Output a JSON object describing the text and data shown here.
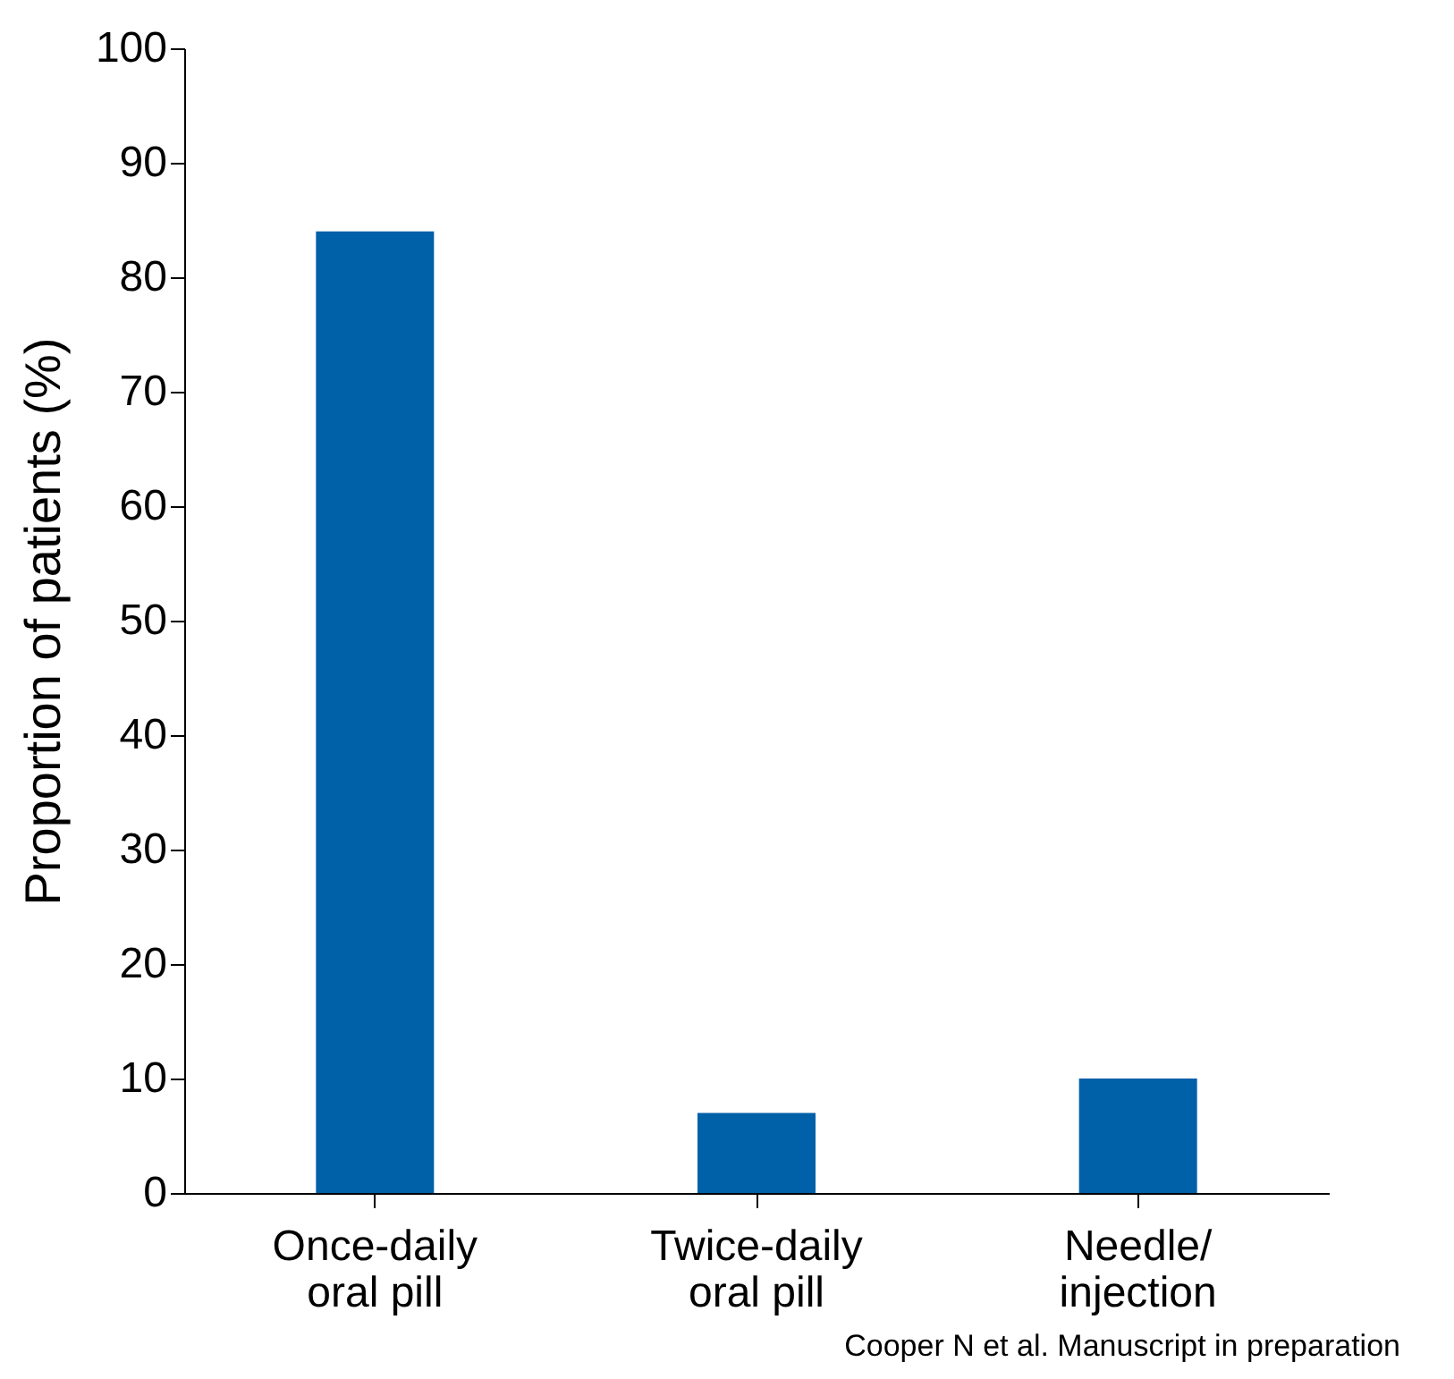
{
  "chart_data": {
    "type": "bar",
    "ylabel": "Proportion of patients (%)",
    "categories": [
      "Once-daily oral pill",
      "Twice-daily oral pill",
      "Needle/ injection"
    ],
    "values": [
      84,
      7,
      10
    ],
    "color": "#0060a8",
    "ylim": [
      0,
      100
    ],
    "yticks": [
      0,
      10,
      20,
      30,
      40,
      50,
      60,
      70,
      80,
      90,
      100
    ],
    "grid": false,
    "annotations": [
      "Cooper N et al. Manuscript in preparation"
    ]
  }
}
